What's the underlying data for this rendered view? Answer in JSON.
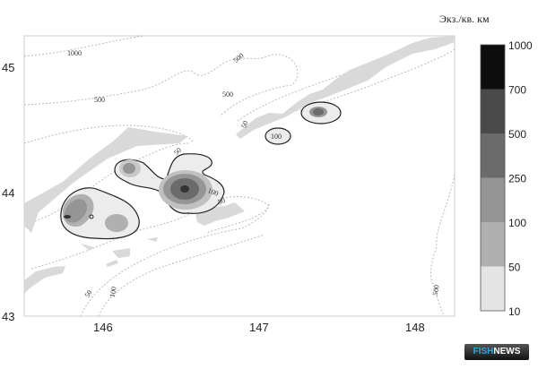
{
  "map": {
    "x_ticks": [
      "146",
      "147",
      "148"
    ],
    "y_ticks": [
      "45",
      "44",
      "43"
    ],
    "isobath_labels": [
      "1000",
      "500",
      "500",
      "500",
      "50",
      "50",
      "100",
      "50",
      "100",
      "500"
    ],
    "contour_labels": [
      "100",
      "50",
      "100",
      "50"
    ]
  },
  "legend": {
    "title": "Экз./кв. км",
    "levels": [
      "1000",
      "700",
      "500",
      "250",
      "100",
      "50",
      "10"
    ],
    "colors": [
      "#0d0d0d",
      "#4a4a4a",
      "#6b6b6b",
      "#959595",
      "#b0b0b0",
      "#e4e4e4"
    ]
  },
  "colors": {
    "land": "#d9d9d9",
    "isobath": "#bbbbbb",
    "contour_line": "#222222"
  },
  "logo": {
    "part1": "FISH",
    "part2": "NEWS"
  }
}
